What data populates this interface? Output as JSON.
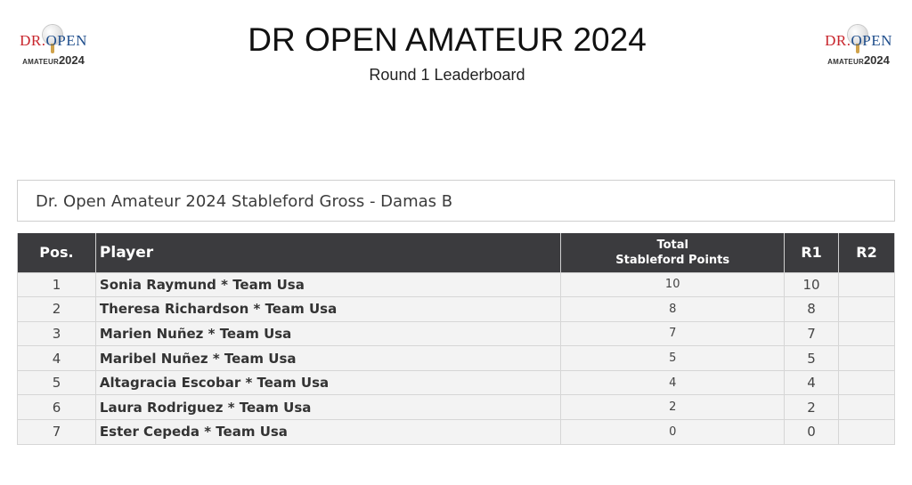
{
  "logo": {
    "brand_dr": "DR.",
    "brand_open": "OPEN",
    "amateur": "AMATEUR",
    "year": "2024"
  },
  "header": {
    "title": "DR OPEN AMATEUR 2024",
    "subtitle": "Round 1 Leaderboard"
  },
  "event": {
    "name": "Dr. Open Amateur 2024 Stableford Gross - Damas B"
  },
  "table": {
    "columns": {
      "pos": "Pos.",
      "player": "Player",
      "total_line1": "Total",
      "total_line2": "Stableford Points",
      "r1": "R1",
      "r2": "R2"
    },
    "rows": [
      {
        "pos": "1",
        "player": "Sonia Raymund * Team Usa",
        "points": "10",
        "r1": "10",
        "r2": ""
      },
      {
        "pos": "2",
        "player": "Theresa Richardson * Team Usa",
        "points": "8",
        "r1": "8",
        "r2": ""
      },
      {
        "pos": "3",
        "player": "Marien Nuñez * Team Usa",
        "points": "7",
        "r1": "7",
        "r2": ""
      },
      {
        "pos": "4",
        "player": "Maribel Nuñez * Team Usa",
        "points": "5",
        "r1": "5",
        "r2": ""
      },
      {
        "pos": "5",
        "player": "Altagracia Escobar * Team Usa",
        "points": "4",
        "r1": "4",
        "r2": ""
      },
      {
        "pos": "6",
        "player": "Laura Rodriguez * Team Usa",
        "points": "2",
        "r1": "2",
        "r2": ""
      },
      {
        "pos": "7",
        "player": "Ester Cepeda * Team Usa",
        "points": "0",
        "r1": "0",
        "r2": ""
      }
    ]
  },
  "colors": {
    "header_bg": "#3b3b3e",
    "row_bg": "#f3f3f3",
    "brand_red": "#c8252c",
    "brand_blue": "#1f4e8c"
  }
}
